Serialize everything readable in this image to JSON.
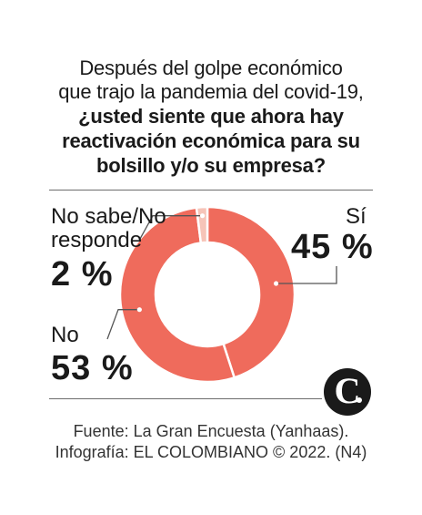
{
  "title": {
    "line1": "Después del golpe económico",
    "line2": "que trajo la pandemia del covid-19,",
    "line3": "¿usted siente que ahora hay",
    "line4": "reactivación económica para su",
    "line5": "bolsillo y/o su empresa?"
  },
  "chart_data": {
    "type": "pie",
    "variant": "donut",
    "categories": [
      "Sí",
      "No",
      "No sabe/No responde"
    ],
    "values": [
      45,
      53,
      2
    ],
    "value_labels": [
      "45 %",
      "53 %",
      "2 %"
    ],
    "colors": [
      "#ef6b5c",
      "#ef6b5c",
      "#f6c4b8"
    ]
  },
  "labels": {
    "si_name": "Sí",
    "si_value": "45 %",
    "no_name": "No",
    "no_value": "53 %",
    "ns_name_line1": "No sabe/No",
    "ns_name_line2": "responde",
    "ns_value": "2 %"
  },
  "logo": {
    "letter": "C"
  },
  "footer": {
    "source": "Fuente: La Gran Encuesta (Yanhaas).",
    "credit": "Infografía: EL COLOMBIANO © 2022. (N4)"
  }
}
